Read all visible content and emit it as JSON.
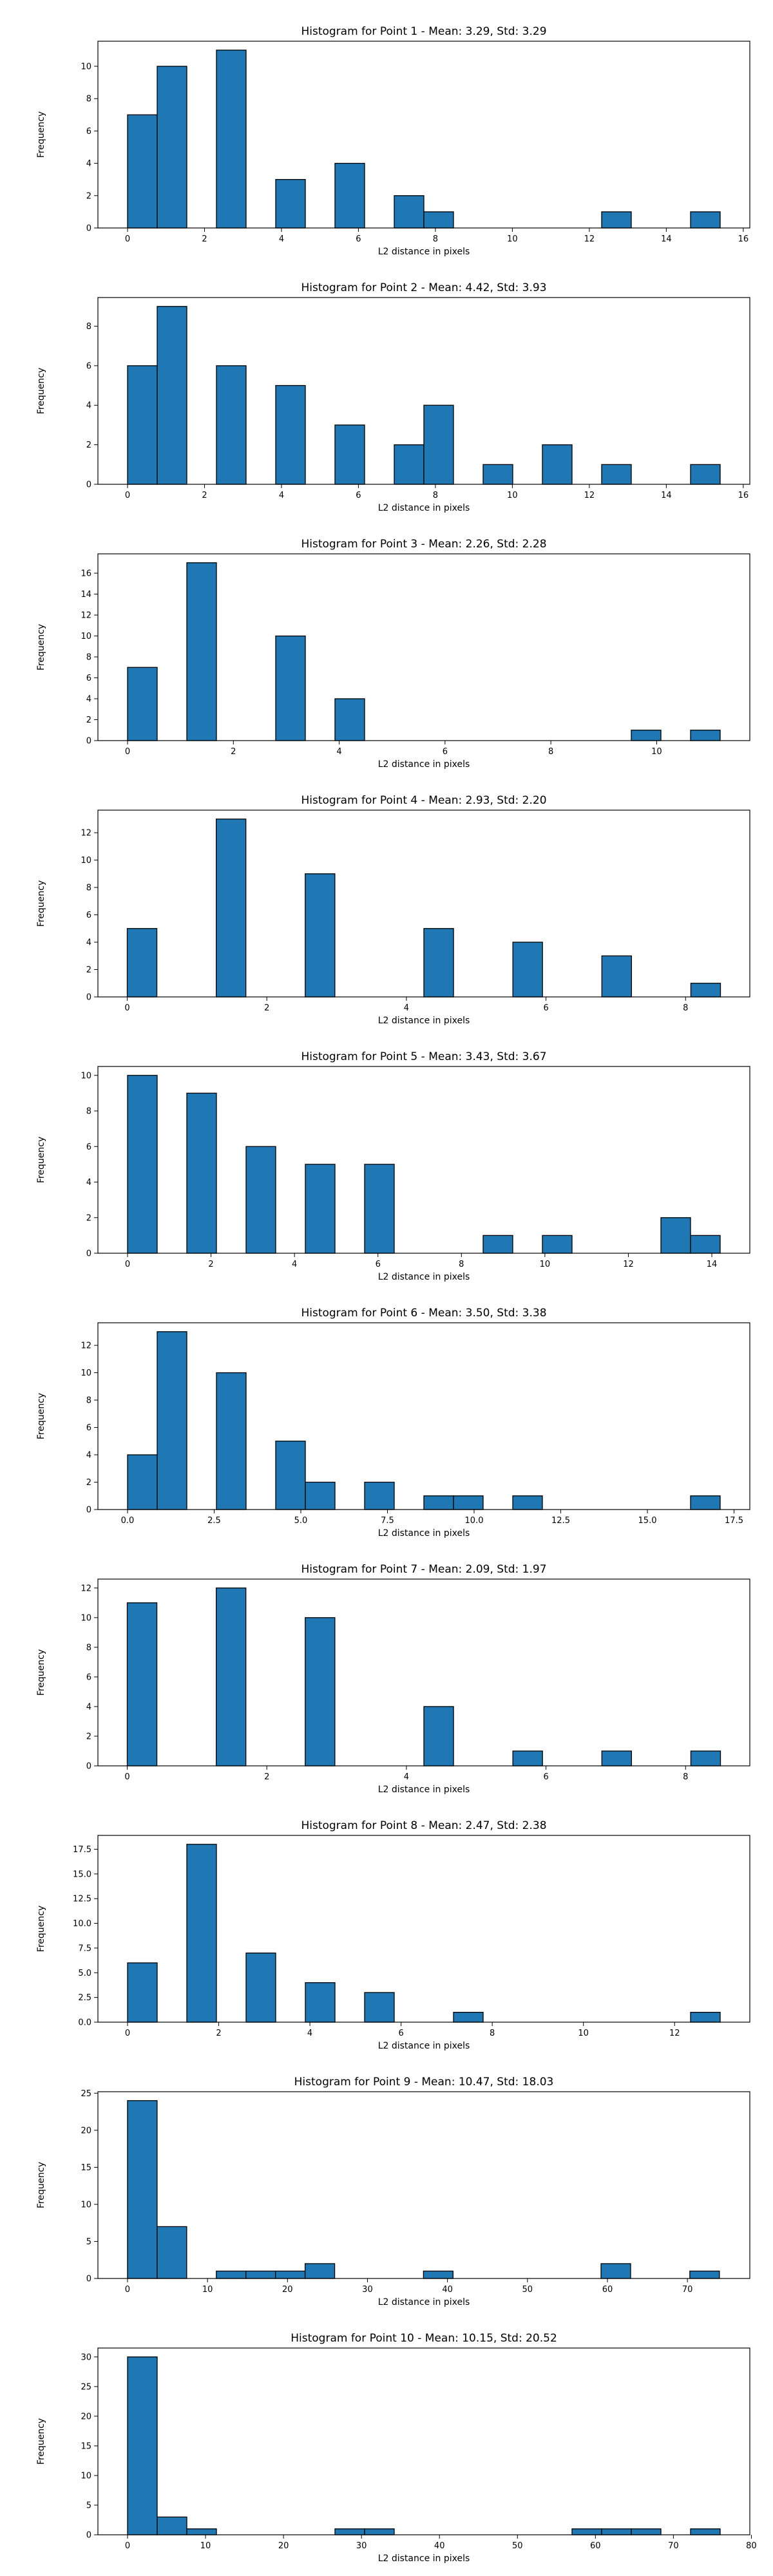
{
  "colors": {
    "bar_fill": "#1f77b4",
    "bar_edge": "#000000",
    "axes": "#000000",
    "background": "#ffffff"
  },
  "chart_data": [
    {
      "type": "bar",
      "title": "Histogram for Point 1 - Mean: 3.29, Std: 3.29",
      "xlabel": "L2 distance in pixels",
      "ylabel": "Frequency",
      "xlim": [
        -0.77,
        16.17
      ],
      "ylim": [
        0,
        11.55
      ],
      "xticks": [
        0,
        2,
        4,
        6,
        8,
        10,
        12,
        14,
        16
      ],
      "yticks": [
        0,
        2,
        4,
        6,
        8,
        10
      ],
      "grid": false,
      "bin_width": 0.77,
      "bins": [
        {
          "x": 0.0,
          "value": 7
        },
        {
          "x": 0.77,
          "value": 10
        },
        {
          "x": 2.31,
          "value": 11
        },
        {
          "x": 3.85,
          "value": 3
        },
        {
          "x": 5.39,
          "value": 4
        },
        {
          "x": 6.93,
          "value": 2
        },
        {
          "x": 7.7,
          "value": 1
        },
        {
          "x": 12.32,
          "value": 1
        },
        {
          "x": 14.63,
          "value": 1
        }
      ]
    },
    {
      "type": "bar",
      "title": "Histogram for Point 2 - Mean: 4.42, Std: 3.93",
      "xlabel": "L2 distance in pixels",
      "ylabel": "Frequency",
      "xlim": [
        -0.77,
        16.17
      ],
      "ylim": [
        0,
        9.45
      ],
      "xticks": [
        0,
        2,
        4,
        6,
        8,
        10,
        12,
        14,
        16
      ],
      "yticks": [
        0,
        2,
        4,
        6,
        8
      ],
      "grid": false,
      "bin_width": 0.77,
      "bins": [
        {
          "x": 0.0,
          "value": 6
        },
        {
          "x": 0.77,
          "value": 9
        },
        {
          "x": 2.31,
          "value": 6
        },
        {
          "x": 3.85,
          "value": 5
        },
        {
          "x": 5.39,
          "value": 3
        },
        {
          "x": 6.93,
          "value": 2
        },
        {
          "x": 7.7,
          "value": 4
        },
        {
          "x": 9.24,
          "value": 1
        },
        {
          "x": 10.78,
          "value": 2
        },
        {
          "x": 12.32,
          "value": 1
        },
        {
          "x": 14.63,
          "value": 1
        }
      ]
    },
    {
      "type": "bar",
      "title": "Histogram for Point 3 - Mean: 2.26, Std: 2.28",
      "xlabel": "L2 distance in pixels",
      "ylabel": "Frequency",
      "xlim": [
        -0.56,
        11.76
      ],
      "ylim": [
        0,
        17.85
      ],
      "xticks": [
        0,
        2,
        4,
        6,
        8,
        10
      ],
      "yticks": [
        0,
        2,
        4,
        6,
        8,
        10,
        12,
        14,
        16
      ],
      "grid": false,
      "bin_width": 0.56,
      "bins": [
        {
          "x": 0.0,
          "value": 7
        },
        {
          "x": 1.12,
          "value": 17
        },
        {
          "x": 2.8,
          "value": 10
        },
        {
          "x": 3.92,
          "value": 4
        },
        {
          "x": 9.52,
          "value": 1
        },
        {
          "x": 10.64,
          "value": 1
        }
      ]
    },
    {
      "type": "bar",
      "title": "Histogram for Point 4 - Mean: 2.93, Std: 2.20",
      "xlabel": "L2 distance in pixels",
      "ylabel": "Frequency",
      "xlim": [
        -0.42,
        8.92
      ],
      "ylim": [
        0,
        13.65
      ],
      "xticks": [
        0,
        2,
        4,
        6,
        8
      ],
      "yticks": [
        0,
        2,
        4,
        6,
        8,
        10,
        12
      ],
      "grid": false,
      "bin_width": 0.425,
      "bins": [
        {
          "x": 0.0,
          "value": 5
        },
        {
          "x": 1.275,
          "value": 13
        },
        {
          "x": 2.55,
          "value": 9
        },
        {
          "x": 4.25,
          "value": 5
        },
        {
          "x": 5.525,
          "value": 4
        },
        {
          "x": 6.8,
          "value": 3
        },
        {
          "x": 8.075,
          "value": 1
        }
      ]
    },
    {
      "type": "bar",
      "title": "Histogram for Point 5 - Mean: 3.43, Std: 3.67",
      "xlabel": "L2 distance in pixels",
      "ylabel": "Frequency",
      "xlim": [
        -0.71,
        14.91
      ],
      "ylim": [
        0,
        10.5
      ],
      "xticks": [
        0,
        2,
        4,
        6,
        8,
        10,
        12,
        14
      ],
      "yticks": [
        0,
        2,
        4,
        6,
        8,
        10
      ],
      "grid": false,
      "bin_width": 0.71,
      "bins": [
        {
          "x": 0.0,
          "value": 10
        },
        {
          "x": 1.42,
          "value": 9
        },
        {
          "x": 2.84,
          "value": 6
        },
        {
          "x": 4.26,
          "value": 5
        },
        {
          "x": 5.68,
          "value": 5
        },
        {
          "x": 8.52,
          "value": 1
        },
        {
          "x": 9.94,
          "value": 1
        },
        {
          "x": 12.78,
          "value": 2
        },
        {
          "x": 13.49,
          "value": 1
        }
      ]
    },
    {
      "type": "bar",
      "title": "Histogram for Point 6 - Mean: 3.50, Std: 3.38",
      "xlabel": "L2 distance in pixels",
      "ylabel": "Frequency",
      "xlim": [
        -0.855,
        17.955
      ],
      "ylim": [
        0,
        13.65
      ],
      "xticks": [
        "0.0",
        "2.5",
        "5.0",
        "7.5",
        "10.0",
        "12.5",
        "15.0",
        "17.5"
      ],
      "yticks": [
        0,
        2,
        4,
        6,
        8,
        10,
        12
      ],
      "grid": false,
      "bin_width": 0.855,
      "bins": [
        {
          "x": 0.0,
          "value": 4
        },
        {
          "x": 0.855,
          "value": 13
        },
        {
          "x": 2.565,
          "value": 10
        },
        {
          "x": 4.275,
          "value": 5
        },
        {
          "x": 5.13,
          "value": 2
        },
        {
          "x": 6.84,
          "value": 2
        },
        {
          "x": 8.55,
          "value": 1
        },
        {
          "x": 9.405,
          "value": 1
        },
        {
          "x": 11.115,
          "value": 1
        },
        {
          "x": 16.245,
          "value": 1
        }
      ]
    },
    {
      "type": "bar",
      "title": "Histogram for Point 7 - Mean: 2.09, Std: 1.97",
      "xlabel": "L2 distance in pixels",
      "ylabel": "Frequency",
      "xlim": [
        -0.42,
        8.92
      ],
      "ylim": [
        0,
        12.6
      ],
      "xticks": [
        0,
        2,
        4,
        6,
        8
      ],
      "yticks": [
        0,
        2,
        4,
        6,
        8,
        10,
        12
      ],
      "grid": false,
      "bin_width": 0.425,
      "bins": [
        {
          "x": 0.0,
          "value": 11
        },
        {
          "x": 1.275,
          "value": 12
        },
        {
          "x": 2.55,
          "value": 10
        },
        {
          "x": 4.25,
          "value": 4
        },
        {
          "x": 5.525,
          "value": 1
        },
        {
          "x": 6.8,
          "value": 1
        },
        {
          "x": 8.075,
          "value": 1
        }
      ]
    },
    {
      "type": "bar",
      "title": "Histogram for Point 8 - Mean: 2.47, Std: 2.38",
      "xlabel": "L2 distance in pixels",
      "ylabel": "Frequency",
      "xlim": [
        -0.65,
        13.65
      ],
      "ylim": [
        0,
        18.9
      ],
      "xticks": [
        0,
        2,
        4,
        6,
        8,
        10,
        12
      ],
      "ytick_labels": [
        "0.0",
        "2.5",
        "5.0",
        "7.5",
        "10.0",
        "12.5",
        "15.0",
        "17.5"
      ],
      "ytick_values": [
        0,
        2.5,
        5,
        7.5,
        10,
        12.5,
        15,
        17.5
      ],
      "grid": false,
      "bin_width": 0.65,
      "bins": [
        {
          "x": 0.0,
          "value": 6
        },
        {
          "x": 1.3,
          "value": 18
        },
        {
          "x": 2.6,
          "value": 7
        },
        {
          "x": 3.9,
          "value": 4
        },
        {
          "x": 5.2,
          "value": 3
        },
        {
          "x": 7.15,
          "value": 1
        },
        {
          "x": 12.35,
          "value": 1
        }
      ]
    },
    {
      "type": "bar",
      "title": "Histogram for Point 9 - Mean: 10.47, Std: 18.03",
      "xlabel": "L2 distance in pixels",
      "ylabel": "Frequency",
      "xlim": [
        -3.7,
        77.8
      ],
      "ylim": [
        0,
        25.2
      ],
      "xticks": [
        0,
        10,
        20,
        30,
        40,
        50,
        60,
        70
      ],
      "yticks": [
        0,
        5,
        10,
        15,
        20,
        25
      ],
      "grid": false,
      "bin_width": 3.7,
      "bins": [
        {
          "x": 0.0,
          "value": 24
        },
        {
          "x": 3.7,
          "value": 7
        },
        {
          "x": 11.1,
          "value": 1
        },
        {
          "x": 14.8,
          "value": 1
        },
        {
          "x": 18.5,
          "value": 1
        },
        {
          "x": 22.2,
          "value": 2
        },
        {
          "x": 37.0,
          "value": 1
        },
        {
          "x": 59.2,
          "value": 2
        },
        {
          "x": 70.3,
          "value": 1
        }
      ]
    },
    {
      "type": "bar",
      "title": "Histogram for Point 10 - Mean: 10.15, Std: 20.52",
      "xlabel": "L2 distance in pixels",
      "ylabel": "Frequency",
      "xlim": [
        -3.8,
        79.8
      ],
      "ylim": [
        0,
        31.5
      ],
      "xticks": [
        0,
        10,
        20,
        30,
        40,
        50,
        60,
        70,
        80
      ],
      "yticks": [
        0,
        5,
        10,
        15,
        20,
        25,
        30
      ],
      "grid": false,
      "bin_width": 3.8,
      "bins": [
        {
          "x": 0.0,
          "value": 30
        },
        {
          "x": 3.8,
          "value": 3
        },
        {
          "x": 7.6,
          "value": 1
        },
        {
          "x": 26.6,
          "value": 1
        },
        {
          "x": 30.4,
          "value": 1
        },
        {
          "x": 57.0,
          "value": 1
        },
        {
          "x": 60.8,
          "value": 1
        },
        {
          "x": 64.6,
          "value": 1
        },
        {
          "x": 72.2,
          "value": 1
        }
      ]
    }
  ]
}
